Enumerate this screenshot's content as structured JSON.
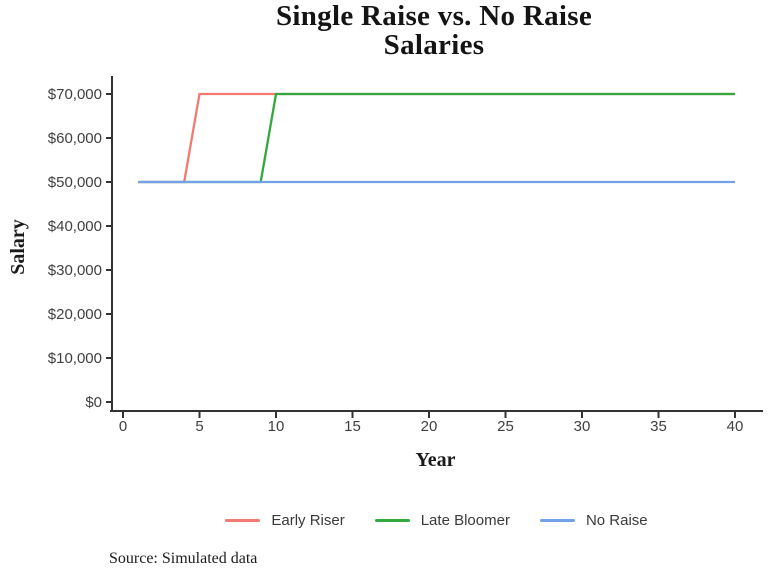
{
  "chart_data": {
    "type": "line",
    "title": "Single Raise vs. No Raise Salaries",
    "title_lines": [
      "Single Raise vs. No Raise",
      "Salaries"
    ],
    "xlabel": "Year",
    "ylabel": "Salary",
    "xlim": [
      0,
      41.8
    ],
    "ylim": [
      0,
      74000
    ],
    "grid": false,
    "legend_position": "bottom",
    "x_ticks": [
      0,
      5,
      10,
      15,
      20,
      25,
      30,
      35,
      40
    ],
    "y_ticks": [
      0,
      10000,
      20000,
      30000,
      40000,
      50000,
      60000,
      70000
    ],
    "y_tick_labels": [
      "$0",
      "$10,000",
      "$20,000",
      "$30,000",
      "$40,000",
      "$50,000",
      "$60,000",
      "$70,000"
    ],
    "series": [
      {
        "name": "Early Riser",
        "color": "#F4796F",
        "points": [
          [
            1,
            50000
          ],
          [
            4,
            50000
          ],
          [
            5,
            70000
          ],
          [
            40,
            70000
          ]
        ]
      },
      {
        "name": "Late Bloomer",
        "color": "#31A93C",
        "points": [
          [
            1,
            50000
          ],
          [
            9,
            50000
          ],
          [
            10,
            70000
          ],
          [
            40,
            70000
          ]
        ]
      },
      {
        "name": "No Raise",
        "color": "#74A2E8",
        "points": [
          [
            1,
            50000
          ],
          [
            40,
            50000
          ]
        ]
      }
    ],
    "axis_color": "#333333",
    "tick_label_color": "#404040",
    "source_note": "Source: Simulated data"
  }
}
